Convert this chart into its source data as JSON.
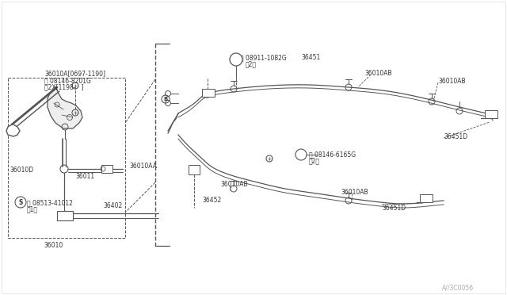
{
  "bg_color": "#ffffff",
  "line_color": "#555555",
  "text_color": "#333333",
  "fig_width": 6.4,
  "fig_height": 3.72,
  "dpi": 100,
  "watermark": "A//3C0056",
  "labels": {
    "36010A_date": "36010A[0697-1190]",
    "B_08146": "Ⓑ 08146-8201G",
    "B_note": "〨2X[1198-   ]",
    "N_08911": "Ⓝ 08911-1082G",
    "N_note": "（2）",
    "36451": "36451",
    "36010AB": "36010AB",
    "36010AA": "36010AA",
    "36010D": "36010D",
    "S_08513": "Ⓢ 08513-41012",
    "S_note": "（1）",
    "36011": "36011",
    "36402": "36402",
    "36010": "36010",
    "36452": "36452",
    "B_08146_2": "Ⓑ 08146-6165G",
    "B_note2": "（2）",
    "36451D": "36451D"
  }
}
